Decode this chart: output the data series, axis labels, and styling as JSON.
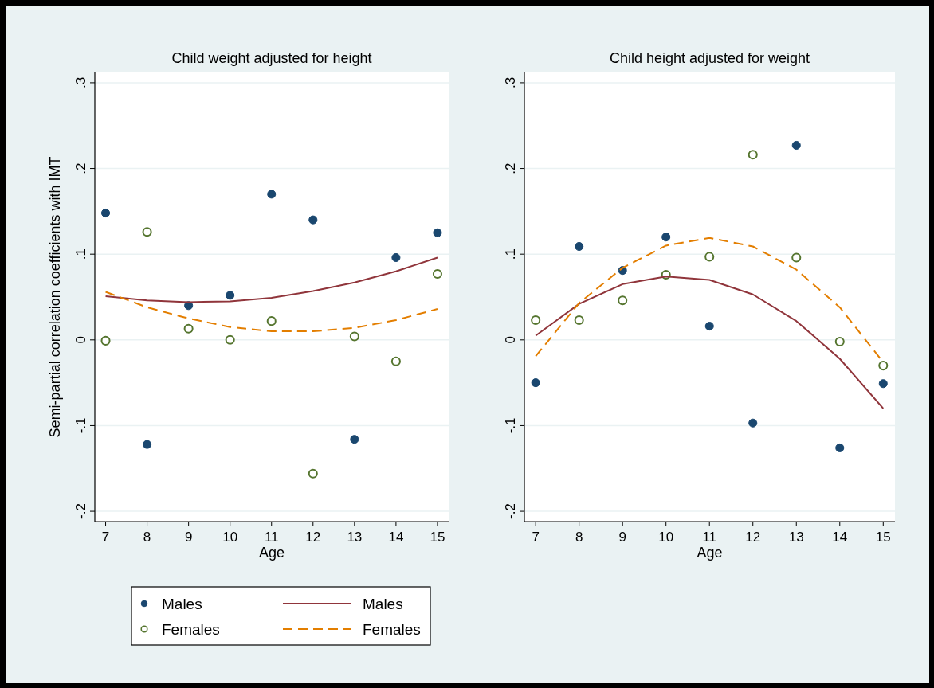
{
  "chart_data": [
    {
      "type": "scatter",
      "title": "Child weight adjusted for height",
      "xlabel": "Age",
      "ylabel": "Semi-partial correlation coefficients with IMT",
      "x": [
        7,
        8,
        9,
        10,
        11,
        12,
        13,
        14,
        15
      ],
      "series": [
        {
          "name": "Males",
          "type": "scatter",
          "color": "#1a476f",
          "marker": "circle",
          "values": [
            0.148,
            -0.122,
            0.04,
            0.052,
            0.17,
            0.14,
            -0.116,
            0.096,
            0.125
          ]
        },
        {
          "name": "Females",
          "type": "scatter",
          "color": "#55752f",
          "marker": "circle",
          "values": [
            -0.001,
            0.126,
            0.013,
            0.0,
            0.022,
            -0.156,
            0.004,
            -0.025,
            0.077
          ]
        },
        {
          "name": "Males",
          "type": "line",
          "color": "#90353b",
          "line_style": "solid",
          "values": [
            0.051,
            0.046,
            0.044,
            0.045,
            0.049,
            0.057,
            0.067,
            0.08,
            0.096
          ]
        },
        {
          "name": "Females",
          "type": "line",
          "color": "#e37e00",
          "line_style": "dashed",
          "values": [
            0.056,
            0.038,
            0.025,
            0.015,
            0.01,
            0.01,
            0.014,
            0.023,
            0.036
          ]
        }
      ],
      "xlim": [
        6.74,
        15.27
      ],
      "xticks": [
        7,
        8,
        9,
        10,
        11,
        12,
        13,
        14,
        15
      ],
      "ylim": [
        -0.212,
        0.312
      ],
      "yticks": [
        {
          "value": -0.2,
          "label": "-.2"
        },
        {
          "value": -0.1,
          "label": "-.1"
        },
        {
          "value": 0,
          "label": "0"
        },
        {
          "value": 0.1,
          "label": ".1"
        },
        {
          "value": 0.2,
          "label": ".2"
        },
        {
          "value": 0.3,
          "label": ".3"
        }
      ],
      "grid": "y",
      "legend": "bottom"
    },
    {
      "type": "scatter",
      "title": "Child height adjusted for weight",
      "xlabel": "Age",
      "x": [
        7,
        8,
        9,
        10,
        11,
        12,
        13,
        14,
        15
      ],
      "series": [
        {
          "type": "scatter",
          "color": "#1a476f",
          "marker": "circle",
          "values": [
            -0.05,
            0.109,
            0.081,
            0.12,
            0.016,
            -0.097,
            0.227,
            -0.126,
            -0.051
          ]
        },
        {
          "type": "scatter",
          "color": "#55752f",
          "marker": "circle",
          "values": [
            0.023,
            0.023,
            0.046,
            0.076,
            0.097,
            0.216,
            0.096,
            -0.002,
            -0.03
          ]
        },
        {
          "type": "line",
          "color": "#90353b",
          "line_style": "solid",
          "values": [
            0.005,
            0.042,
            0.065,
            0.074,
            0.07,
            0.053,
            0.022,
            -0.022,
            -0.08
          ]
        },
        {
          "type": "line",
          "color": "#e37e00",
          "line_style": "dashed",
          "values": [
            -0.019,
            0.043,
            0.084,
            0.11,
            0.119,
            0.109,
            0.082,
            0.038,
            -0.026
          ]
        }
      ],
      "xlim": [
        6.74,
        15.27
      ],
      "xticks": [
        7,
        8,
        9,
        10,
        11,
        12,
        13,
        14,
        15
      ],
      "ylim": [
        -0.212,
        0.312
      ],
      "yticks": [
        {
          "value": -0.2,
          "label": "-.2"
        },
        {
          "value": -0.1,
          "label": "-.1"
        },
        {
          "value": 0,
          "label": "0"
        },
        {
          "value": 0.1,
          "label": ".1"
        },
        {
          "value": 0.2,
          "label": ".2"
        },
        {
          "value": 0.3,
          "label": ".3"
        }
      ],
      "grid": "y",
      "legend": false
    }
  ]
}
